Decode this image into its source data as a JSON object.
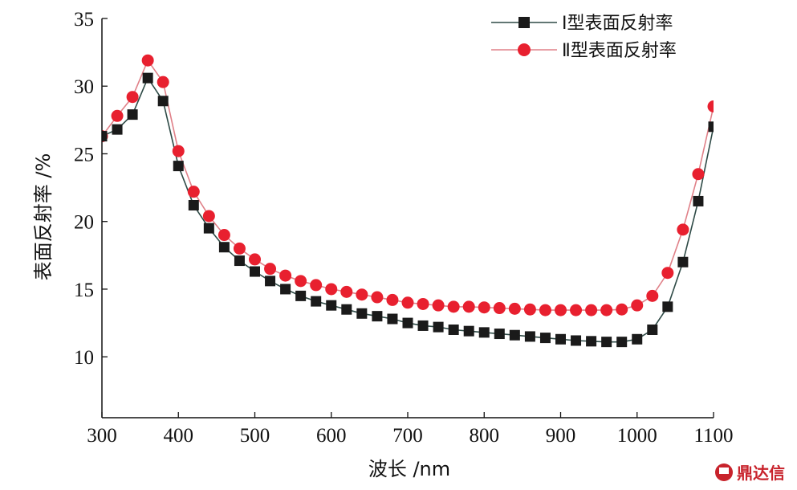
{
  "chart_data": {
    "type": "line",
    "xlabel": "波长 /nm",
    "ylabel": "表面反射率 /%",
    "xlim": [
      300,
      1100
    ],
    "ylim": [
      5.5,
      35
    ],
    "xticks": [
      "300",
      "400",
      "500",
      "600",
      "700",
      "800",
      "900",
      "1000",
      "1100"
    ],
    "yticks": [
      "10",
      "15",
      "20",
      "25",
      "30",
      "35"
    ],
    "legend_position": "top-right",
    "grid": false,
    "series": [
      {
        "name": "Ⅰ型表面反射率",
        "color": "#1a1a1a",
        "line_color": "#2e4a46",
        "marker": "square",
        "x": [
          300,
          320,
          340,
          360,
          380,
          400,
          420,
          440,
          460,
          480,
          500,
          520,
          540,
          560,
          580,
          600,
          620,
          640,
          660,
          680,
          700,
          720,
          740,
          760,
          780,
          800,
          820,
          840,
          860,
          880,
          900,
          920,
          940,
          960,
          980,
          1000,
          1020,
          1040,
          1060,
          1080,
          1100
        ],
        "values": [
          26.3,
          26.8,
          27.9,
          30.6,
          28.9,
          24.1,
          21.2,
          19.5,
          18.1,
          17.1,
          16.3,
          15.6,
          15.0,
          14.5,
          14.1,
          13.8,
          13.5,
          13.2,
          13.0,
          12.8,
          12.5,
          12.3,
          12.2,
          12.0,
          11.9,
          11.8,
          11.7,
          11.6,
          11.5,
          11.4,
          11.3,
          11.2,
          11.15,
          11.1,
          11.1,
          11.3,
          12.0,
          13.7,
          17.0,
          21.5,
          27.0
        ]
      },
      {
        "name": "Ⅱ型表面反射率",
        "color": "#e8202f",
        "line_color": "#e08088",
        "marker": "circle",
        "x": [
          300,
          320,
          340,
          360,
          380,
          400,
          420,
          440,
          460,
          480,
          500,
          520,
          540,
          560,
          580,
          600,
          620,
          640,
          660,
          680,
          700,
          720,
          740,
          760,
          780,
          800,
          820,
          840,
          860,
          880,
          900,
          920,
          940,
          960,
          980,
          1000,
          1020,
          1040,
          1060,
          1080,
          1100
        ],
        "values": [
          26.3,
          27.8,
          29.2,
          31.9,
          30.3,
          25.2,
          22.2,
          20.4,
          19.0,
          18.0,
          17.2,
          16.5,
          16.0,
          15.6,
          15.3,
          15.0,
          14.8,
          14.6,
          14.4,
          14.2,
          14.0,
          13.9,
          13.8,
          13.7,
          13.7,
          13.65,
          13.6,
          13.55,
          13.5,
          13.45,
          13.45,
          13.45,
          13.45,
          13.45,
          13.5,
          13.8,
          14.5,
          16.2,
          19.4,
          23.5,
          28.5
        ]
      }
    ]
  },
  "watermark": {
    "text": "鼎达信",
    "color": "#c8232c"
  }
}
